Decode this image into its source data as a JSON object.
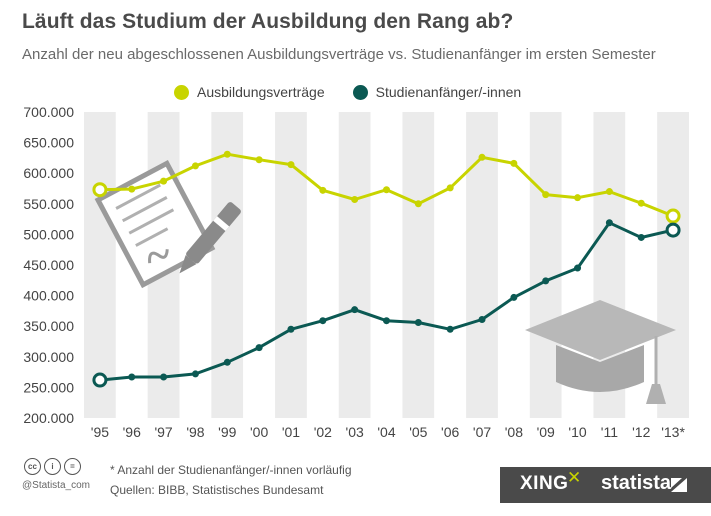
{
  "title": "Läuft das Studium der Ausbildung den Rang ab?",
  "subtitle": "Anzahl der neu abgeschlossenen Ausbildungsverträge vs. Studienanfänger im ersten Semester",
  "legend": [
    {
      "label": "Ausbildungsverträge",
      "color": "#c8d400"
    },
    {
      "label": "Studienanfänger/-innen",
      "color": "#0b5953"
    }
  ],
  "footer": {
    "handle": "@Statista_com",
    "note1": "* Anzahl der Studienanfänger/-innen vorläufig",
    "note2": "Quellen: BIBB, Statistisches Bundesamt",
    "xing": "XING",
    "xing_mark": "✕",
    "statista": "statista"
  },
  "chart_data": {
    "type": "line",
    "title": "Läuft das Studium der Ausbildung den Rang ab?",
    "subtitle": "Anzahl der neu abgeschlossenen Ausbildungsverträge vs. Studienanfänger im ersten Semester",
    "categories": [
      "'95",
      "'96",
      "'97",
      "'98",
      "'99",
      "'00",
      "'01",
      "'02",
      "'03",
      "'04",
      "'05",
      "'06",
      "'07",
      "'08",
      "'09",
      "'10",
      "'11",
      "'12",
      "'13*"
    ],
    "yticks": [
      "700.000",
      "650.000",
      "600.000",
      "550.000",
      "500.000",
      "450.000",
      "400.000",
      "350.000",
      "300.000",
      "250.000",
      "200.000"
    ],
    "ylim": [
      200000,
      700000
    ],
    "grid": "alternating column bands",
    "legend_position": "top",
    "series": [
      {
        "name": "Ausbildungsverträge",
        "color": "#c8d400",
        "values": [
          573000,
          574000,
          587000,
          612000,
          631000,
          622000,
          614000,
          572000,
          557000,
          573000,
          550000,
          576000,
          626000,
          616000,
          565000,
          560000,
          570000,
          551000,
          530000
        ]
      },
      {
        "name": "Studienanfänger/-innen",
        "color": "#0b5953",
        "values": [
          262000,
          267000,
          267000,
          272000,
          291000,
          315000,
          345000,
          359000,
          377000,
          359000,
          356000,
          345000,
          361000,
          397000,
          424000,
          445000,
          519000,
          495000,
          507000
        ]
      }
    ]
  }
}
